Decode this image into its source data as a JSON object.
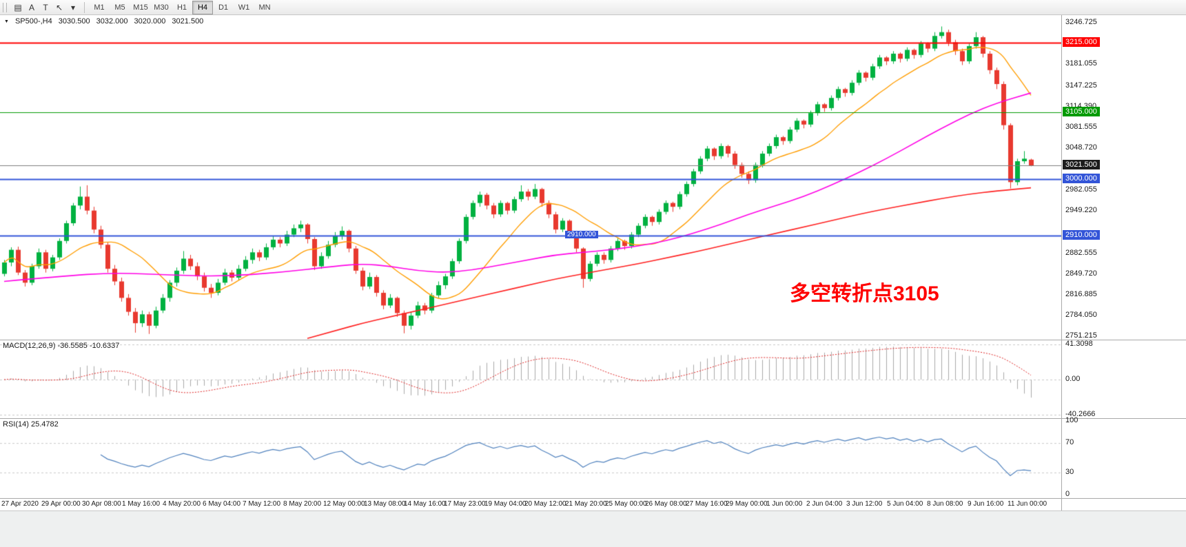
{
  "toolbar": {
    "icons": [
      {
        "name": "chart-window-icon",
        "glyph": "▤"
      },
      {
        "name": "font-tool-icon",
        "glyph": "A"
      },
      {
        "name": "text-tool-icon",
        "glyph": "T"
      },
      {
        "name": "pointer-tool-icon",
        "glyph": "↖"
      },
      {
        "name": "tool-dropdown-caret-icon",
        "glyph": "▾"
      }
    ],
    "timeframes": [
      "M1",
      "M5",
      "M15",
      "M30",
      "H1",
      "H4",
      "D1",
      "W1",
      "MN"
    ],
    "active_timeframe": "H4"
  },
  "chart_data": {
    "type": "candlestick",
    "title": "SP500-,H4",
    "ohlc_header": {
      "marker": "▼",
      "symbol": "SP500-,H4",
      "open": "3030.500",
      "high": "3032.000",
      "low": "3020.000",
      "close": "3021.500"
    },
    "price_range": {
      "top": 3258.9,
      "bottom": 2746.0
    },
    "y_axis": {
      "ticks": [
        {
          "text": "3246.725",
          "value": 3246.725
        },
        {
          "text": "3181.055",
          "value": 3181.055
        },
        {
          "text": "3147.225",
          "value": 3147.225
        },
        {
          "text": "3114.390",
          "value": 3114.39
        },
        {
          "text": "3081.555",
          "value": 3081.555
        },
        {
          "text": "3048.720",
          "value": 3048.72
        },
        {
          "text": "2982.055",
          "value": 2982.055
        },
        {
          "text": "2949.220",
          "value": 2949.22
        },
        {
          "text": "2882.555",
          "value": 2882.555
        },
        {
          "text": "2849.720",
          "value": 2849.72
        },
        {
          "text": "2816.885",
          "value": 2816.885
        },
        {
          "text": "2784.050",
          "value": 2784.05
        },
        {
          "text": "2751.215",
          "value": 2751.215
        }
      ]
    },
    "hlines": [
      {
        "price": 3215,
        "label": "3215.000",
        "color": "#ff0000",
        "width": 2
      },
      {
        "price": 3105,
        "label": "3105.000",
        "color": "#009a00",
        "width": 1
      },
      {
        "price": 3000,
        "label": "3000.000",
        "color": "#3355d8",
        "width": 2
      },
      {
        "price": 2910,
        "label": "2910.000",
        "color": "#3355d8",
        "width": 2,
        "mid_label_x": 820
      }
    ],
    "current_price": {
      "value": 3021.5,
      "label": "3021.500",
      "line_color": "#7d7d7d",
      "label_bg": "#1c1c1c"
    },
    "annotation": {
      "text": "多空转折点3105",
      "color": "#ff0000"
    },
    "colors": {
      "bull": "#00b140",
      "bear": "#e8392f",
      "ma_fast": "#ff9d00",
      "ma_mid": "#ff00e6",
      "ma_slow": "#ff1f1f",
      "macd_bars": "#a9a9a9",
      "macd_signal": "#dd2222",
      "rsi_line": "#4f81bd",
      "level_dash": "#c8c8c8"
    },
    "moving_averages": {
      "fast": {
        "type": "sma",
        "period": 13
      },
      "mid": {
        "anchors": [
          [
            0,
            2838
          ],
          [
            8,
            2846
          ],
          [
            16,
            2852
          ],
          [
            24,
            2848
          ],
          [
            32,
            2846
          ],
          [
            40,
            2852
          ],
          [
            48,
            2862
          ],
          [
            52,
            2866
          ],
          [
            56,
            2862
          ],
          [
            60,
            2855
          ],
          [
            64,
            2852
          ],
          [
            68,
            2856
          ],
          [
            72,
            2864
          ],
          [
            76,
            2872
          ],
          [
            80,
            2880
          ],
          [
            84,
            2884
          ],
          [
            88,
            2888
          ],
          [
            92,
            2894
          ],
          [
            96,
            2902
          ],
          [
            100,
            2914
          ],
          [
            104,
            2928
          ],
          [
            108,
            2944
          ],
          [
            112,
            2958
          ],
          [
            116,
            2972
          ],
          [
            120,
            2990
          ],
          [
            124,
            3010
          ],
          [
            128,
            3032
          ],
          [
            132,
            3056
          ],
          [
            136,
            3080
          ],
          [
            140,
            3102
          ],
          [
            144,
            3120
          ],
          [
            149,
            3136
          ]
        ]
      },
      "slow": {
        "anchors": [
          [
            44,
            2748
          ],
          [
            48,
            2760
          ],
          [
            52,
            2772
          ],
          [
            56,
            2782
          ],
          [
            60,
            2792
          ],
          [
            64,
            2802
          ],
          [
            68,
            2812
          ],
          [
            72,
            2822
          ],
          [
            76,
            2832
          ],
          [
            80,
            2842
          ],
          [
            84,
            2850
          ],
          [
            88,
            2858
          ],
          [
            92,
            2866
          ],
          [
            96,
            2875
          ],
          [
            100,
            2884
          ],
          [
            104,
            2894
          ],
          [
            108,
            2904
          ],
          [
            112,
            2914
          ],
          [
            116,
            2924
          ],
          [
            120,
            2934
          ],
          [
            124,
            2944
          ],
          [
            128,
            2953
          ],
          [
            132,
            2961
          ],
          [
            136,
            2969
          ],
          [
            140,
            2976
          ],
          [
            144,
            2981
          ],
          [
            149,
            2986
          ]
        ]
      }
    },
    "candles": [
      [
        2850,
        2872,
        2846,
        2868
      ],
      [
        2868,
        2892,
        2862,
        2888
      ],
      [
        2888,
        2893,
        2848,
        2852
      ],
      [
        2852,
        2856,
        2830,
        2836
      ],
      [
        2836,
        2866,
        2832,
        2862
      ],
      [
        2862,
        2890,
        2858,
        2884
      ],
      [
        2884,
        2888,
        2852,
        2858
      ],
      [
        2858,
        2880,
        2854,
        2876
      ],
      [
        2876,
        2906,
        2872,
        2902
      ],
      [
        2902,
        2934,
        2898,
        2930
      ],
      [
        2930,
        2962,
        2926,
        2958
      ],
      [
        2958,
        2988,
        2952,
        2972
      ],
      [
        2972,
        2990,
        2944,
        2950
      ],
      [
        2950,
        2956,
        2914,
        2920
      ],
      [
        2920,
        2926,
        2890,
        2896
      ],
      [
        2896,
        2900,
        2852,
        2858
      ],
      [
        2858,
        2864,
        2832,
        2838
      ],
      [
        2838,
        2844,
        2806,
        2812
      ],
      [
        2812,
        2818,
        2784,
        2790
      ],
      [
        2790,
        2796,
        2757,
        2772
      ],
      [
        2772,
        2792,
        2766,
        2786
      ],
      [
        2786,
        2790,
        2755,
        2768
      ],
      [
        2768,
        2798,
        2764,
        2792
      ],
      [
        2792,
        2818,
        2788,
        2812
      ],
      [
        2812,
        2840,
        2806,
        2836
      ],
      [
        2836,
        2860,
        2830,
        2855
      ],
      [
        2855,
        2886,
        2850,
        2874
      ],
      [
        2874,
        2880,
        2856,
        2862
      ],
      [
        2862,
        2868,
        2840,
        2846
      ],
      [
        2846,
        2852,
        2822,
        2828
      ],
      [
        2828,
        2834,
        2812,
        2820
      ],
      [
        2820,
        2842,
        2816,
        2836
      ],
      [
        2836,
        2858,
        2832,
        2852
      ],
      [
        2852,
        2856,
        2838,
        2844
      ],
      [
        2844,
        2864,
        2840,
        2858
      ],
      [
        2858,
        2878,
        2854,
        2872
      ],
      [
        2872,
        2890,
        2866,
        2884
      ],
      [
        2884,
        2888,
        2870,
        2876
      ],
      [
        2876,
        2898,
        2872,
        2892
      ],
      [
        2892,
        2910,
        2888,
        2904
      ],
      [
        2904,
        2908,
        2892,
        2898
      ],
      [
        2898,
        2918,
        2894,
        2912
      ],
      [
        2912,
        2928,
        2908,
        2922
      ],
      [
        2922,
        2934,
        2916,
        2928
      ],
      [
        2928,
        2930,
        2898,
        2905
      ],
      [
        2905,
        2908,
        2856,
        2862
      ],
      [
        2862,
        2884,
        2858,
        2878
      ],
      [
        2878,
        2902,
        2874,
        2896
      ],
      [
        2896,
        2916,
        2892,
        2910
      ],
      [
        2910,
        2925,
        2904,
        2918
      ],
      [
        2918,
        2920,
        2884,
        2890
      ],
      [
        2890,
        2894,
        2850,
        2855
      ],
      [
        2855,
        2860,
        2824,
        2830
      ],
      [
        2830,
        2852,
        2826,
        2845
      ],
      [
        2845,
        2848,
        2814,
        2820
      ],
      [
        2820,
        2824,
        2794,
        2800
      ],
      [
        2800,
        2818,
        2796,
        2812
      ],
      [
        2812,
        2814,
        2782,
        2788
      ],
      [
        2788,
        2792,
        2756,
        2768
      ],
      [
        2768,
        2790,
        2762,
        2784
      ],
      [
        2784,
        2806,
        2780,
        2800
      ],
      [
        2800,
        2804,
        2786,
        2792
      ],
      [
        2792,
        2820,
        2788,
        2816
      ],
      [
        2816,
        2838,
        2812,
        2832
      ],
      [
        2832,
        2850,
        2826,
        2846
      ],
      [
        2846,
        2874,
        2842,
        2870
      ],
      [
        2870,
        2906,
        2866,
        2902
      ],
      [
        2902,
        2944,
        2898,
        2940
      ],
      [
        2940,
        2966,
        2936,
        2962
      ],
      [
        2962,
        2980,
        2956,
        2975
      ],
      [
        2975,
        2978,
        2952,
        2958
      ],
      [
        2958,
        2962,
        2938,
        2944
      ],
      [
        2944,
        2966,
        2940,
        2962
      ],
      [
        2962,
        2964,
        2944,
        2950
      ],
      [
        2950,
        2972,
        2946,
        2968
      ],
      [
        2968,
        2990,
        2964,
        2980
      ],
      [
        2980,
        2984,
        2966,
        2972
      ],
      [
        2972,
        2992,
        2968,
        2984
      ],
      [
        2984,
        2986,
        2956,
        2962
      ],
      [
        2962,
        2966,
        2938,
        2944
      ],
      [
        2944,
        2948,
        2914,
        2920
      ],
      [
        2920,
        2938,
        2916,
        2934
      ],
      [
        2934,
        2936,
        2906,
        2912
      ],
      [
        2912,
        2916,
        2884,
        2890
      ],
      [
        2890,
        2892,
        2828,
        2842
      ],
      [
        2842,
        2870,
        2838,
        2866
      ],
      [
        2866,
        2884,
        2862,
        2880
      ],
      [
        2880,
        2884,
        2866,
        2872
      ],
      [
        2872,
        2894,
        2868,
        2890
      ],
      [
        2890,
        2906,
        2886,
        2902
      ],
      [
        2902,
        2904,
        2888,
        2894
      ],
      [
        2894,
        2916,
        2890,
        2912
      ],
      [
        2912,
        2930,
        2908,
        2926
      ],
      [
        2926,
        2944,
        2922,
        2940
      ],
      [
        2940,
        2942,
        2926,
        2932
      ],
      [
        2932,
        2952,
        2928,
        2948
      ],
      [
        2948,
        2966,
        2944,
        2962
      ],
      [
        2962,
        2964,
        2948,
        2956
      ],
      [
        2956,
        2980,
        2952,
        2976
      ],
      [
        2976,
        2996,
        2972,
        2992
      ],
      [
        2992,
        3016,
        2988,
        3012
      ],
      [
        3012,
        3036,
        3008,
        3032
      ],
      [
        3032,
        3052,
        3028,
        3048
      ],
      [
        3048,
        3050,
        3030,
        3036
      ],
      [
        3036,
        3056,
        3032,
        3052
      ],
      [
        3052,
        3054,
        3034,
        3040
      ],
      [
        3040,
        3044,
        3016,
        3022
      ],
      [
        3022,
        3026,
        3002,
        3008
      ],
      [
        3008,
        3012,
        2992,
        2998
      ],
      [
        2998,
        3026,
        2994,
        3022
      ],
      [
        3022,
        3044,
        3018,
        3040
      ],
      [
        3040,
        3056,
        3036,
        3052
      ],
      [
        3052,
        3070,
        3048,
        3066
      ],
      [
        3066,
        3068,
        3054,
        3060
      ],
      [
        3060,
        3082,
        3056,
        3078
      ],
      [
        3078,
        3096,
        3074,
        3092
      ],
      [
        3092,
        3094,
        3080,
        3086
      ],
      [
        3086,
        3108,
        3082,
        3104
      ],
      [
        3104,
        3122,
        3100,
        3118
      ],
      [
        3118,
        3120,
        3106,
        3112
      ],
      [
        3112,
        3132,
        3108,
        3128
      ],
      [
        3128,
        3146,
        3124,
        3142
      ],
      [
        3142,
        3144,
        3130,
        3136
      ],
      [
        3136,
        3156,
        3132,
        3152
      ],
      [
        3152,
        3172,
        3148,
        3168
      ],
      [
        3168,
        3170,
        3154,
        3160
      ],
      [
        3160,
        3182,
        3156,
        3178
      ],
      [
        3178,
        3196,
        3174,
        3192
      ],
      [
        3192,
        3194,
        3180,
        3186
      ],
      [
        3186,
        3202,
        3182,
        3198
      ],
      [
        3198,
        3200,
        3184,
        3190
      ],
      [
        3190,
        3208,
        3186,
        3204
      ],
      [
        3204,
        3206,
        3190,
        3196
      ],
      [
        3196,
        3218,
        3192,
        3214
      ],
      [
        3214,
        3216,
        3200,
        3206
      ],
      [
        3206,
        3232,
        3202,
        3226
      ],
      [
        3226,
        3241,
        3222,
        3232
      ],
      [
        3232,
        3236,
        3210,
        3216
      ],
      [
        3216,
        3220,
        3196,
        3202
      ],
      [
        3202,
        3206,
        3180,
        3186
      ],
      [
        3186,
        3214,
        3182,
        3210
      ],
      [
        3210,
        3232,
        3206,
        3224
      ],
      [
        3224,
        3226,
        3192,
        3198
      ],
      [
        3198,
        3202,
        3166,
        3172
      ],
      [
        3172,
        3176,
        3142,
        3150
      ],
      [
        3150,
        3154,
        3078,
        3085
      ],
      [
        3085,
        3088,
        2985,
        2995
      ],
      [
        2995,
        3032,
        2990,
        3028
      ],
      [
        3028,
        3044,
        3024,
        3032
      ],
      [
        3030.5,
        3032,
        3020,
        3021.5
      ]
    ],
    "indicators": {
      "macd": {
        "label": "MACD(12,26,9) -36.5585 -10.6337",
        "fast": 12,
        "slow": 26,
        "signal": 9,
        "axis_labels": [
          "41.3098",
          "0.00",
          "-40.2666"
        ],
        "last_main": -36.5585,
        "last_signal": -10.6337
      },
      "rsi": {
        "label": "RSI(14) 25.4782",
        "period": 14,
        "axis_labels": [
          "100",
          "70",
          "30",
          "0"
        ],
        "level_lines": [
          70,
          30
        ],
        "last": 25.4782
      }
    },
    "x_labels": [
      "27 Apr 2020",
      "29 Apr 00:00",
      "30 Apr 08:00",
      "1 May 16:00",
      "4 May 20:00",
      "6 May 04:00",
      "7 May 12:00",
      "8 May 20:00",
      "12 May 00:00",
      "13 May 08:00",
      "14 May 16:00",
      "17 May 23:00",
      "19 May 04:00",
      "20 May 12:00",
      "21 May 20:00",
      "25 May 00:00",
      "26 May 08:00",
      "27 May 16:00",
      "29 May 00:00",
      "1 Jun 00:00",
      "2 Jun 04:00",
      "3 Jun 12:00",
      "5 Jun 04:00",
      "8 Jun 08:00",
      "9 Jun 16:00",
      "11 Jun 00:00"
    ]
  }
}
